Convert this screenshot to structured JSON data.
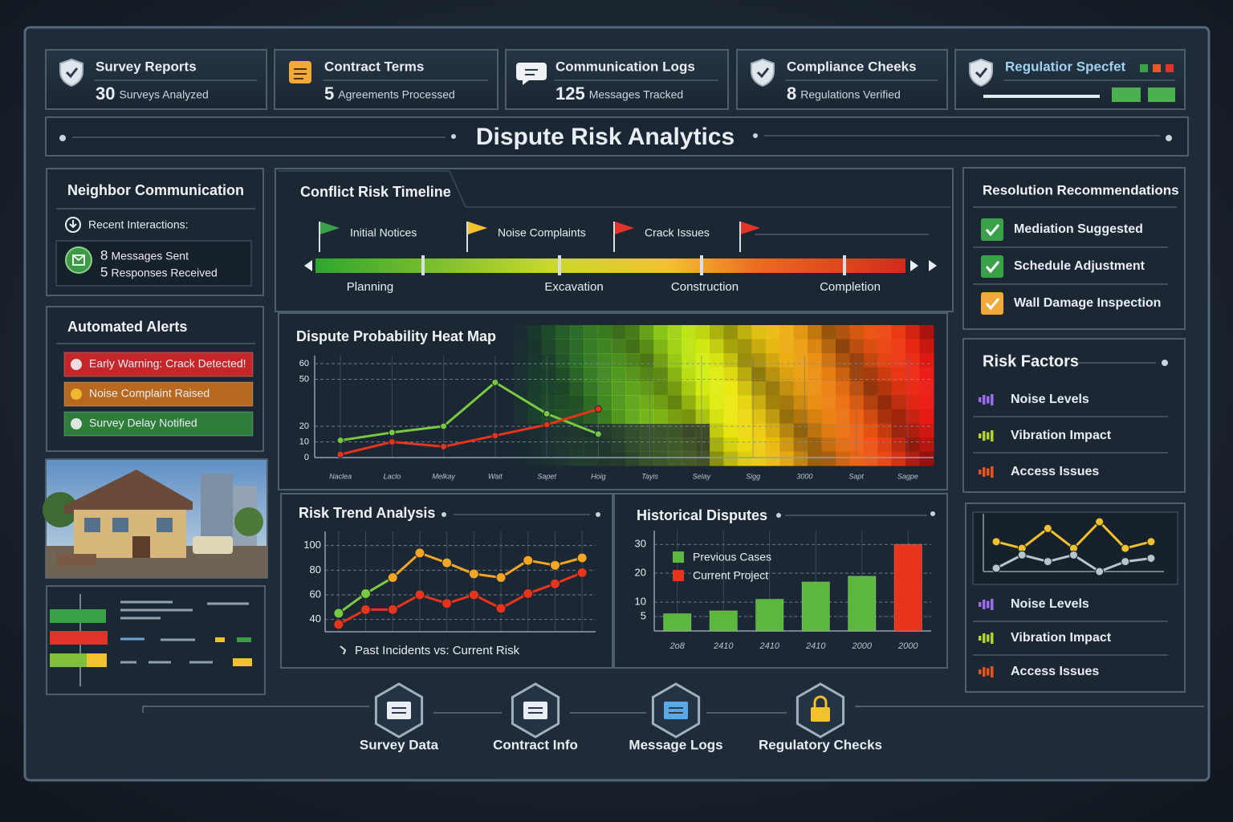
{
  "header_cards": [
    {
      "title": "Survey Reports",
      "value": 30,
      "label": "Surveys Analyzed"
    },
    {
      "title": "Contract Terms",
      "value": 5,
      "label": "Agreements Processed"
    },
    {
      "title": "Communication Logs",
      "value": 125,
      "label": "Messages Tracked"
    },
    {
      "title": "Compliance Cheeks",
      "value": 8,
      "label": "Regulations Verified"
    },
    {
      "title": "Regulatior Specfet"
    }
  ],
  "title": "Dispute Risk Analytics",
  "neighbor_communication": {
    "title": "Neighbor Communication",
    "subtitle": "Recent Interactions:",
    "items": [
      {
        "value": 8,
        "label": "Messages Sent"
      },
      {
        "value": 5,
        "label": "Responses Received"
      }
    ]
  },
  "automated_alerts": {
    "title": "Automated Alerts",
    "items": [
      "Early Warning: Crack Detected!",
      "Noise Complaint Raised",
      "Survey Delay Notified"
    ]
  },
  "timeline": {
    "title": "Conflict Risk Timeline",
    "flags": [
      "Initial Notices",
      "Noise Complaints",
      "Crack Issues"
    ],
    "phases": [
      "Planning",
      "Excavation",
      "Construction",
      "Completion"
    ]
  },
  "chart_data": [
    {
      "type": "line",
      "title": "Dispute Probability Heat Map",
      "categories": [
        "Naclea",
        "Laclo",
        "Melkay",
        "Wait",
        "Sapet",
        "Hoig",
        "Tayis",
        "Selay",
        "Sigg",
        "3000",
        "Sapt",
        "Sagpe"
      ],
      "ylim": [
        0,
        60
      ],
      "yticks": [
        0,
        10,
        20,
        50,
        60
      ],
      "grid": true,
      "series": [
        {
          "color": "#7ac943",
          "values": [
            11,
            16,
            20,
            48,
            28,
            15,
            null,
            null,
            null,
            null,
            null,
            null
          ]
        },
        {
          "color": "#e8341c",
          "values": [
            2,
            10,
            7,
            14,
            21,
            31,
            null,
            null,
            null,
            null,
            null,
            null
          ]
        }
      ]
    },
    {
      "type": "line",
      "title": "Risk Trend Analysis",
      "annotation": "Past Incidents vs: Current Risk",
      "categories": [
        null,
        null,
        null,
        null,
        null,
        null,
        null,
        null,
        null,
        null
      ],
      "ylim": [
        30,
        105
      ],
      "yticks": [
        40,
        60,
        80,
        100
      ],
      "grid": true,
      "series": [
        {
          "color": "#7ac943",
          "values": [
            45,
            61,
            74,
            null,
            null,
            null,
            null,
            null,
            null,
            null
          ]
        },
        {
          "color": "#f5a623",
          "values": [
            null,
            null,
            74,
            94,
            86,
            77,
            74,
            88,
            84,
            90
          ]
        },
        {
          "color": "#e8341c",
          "values": [
            36,
            48,
            48,
            60,
            53,
            60,
            49,
            61,
            69,
            78
          ]
        }
      ]
    },
    {
      "type": "bar",
      "title": "Historical Disputes",
      "categories": [
        "2o8",
        "2410",
        "2410",
        "2410",
        "2000",
        "2000"
      ],
      "ylim": [
        0,
        32
      ],
      "yticks": [
        5,
        10,
        20,
        30
      ],
      "grid": true,
      "series": [
        {
          "name": "Previous Cases",
          "color": "#5cb83c",
          "values": [
            6,
            7,
            11,
            17,
            19,
            null
          ]
        },
        {
          "name": "Current Project",
          "color": "#e8341c",
          "values": [
            null,
            null,
            null,
            null,
            null,
            30
          ]
        }
      ]
    },
    {
      "type": "line",
      "categories": [
        null,
        null,
        null,
        null,
        null,
        null,
        null
      ],
      "series": [
        {
          "color": "#f2c12e",
          "values": [
            6,
            5,
            8,
            5,
            9,
            5,
            6
          ]
        },
        {
          "color": "#b9c4cc",
          "values": [
            2,
            4,
            3,
            4,
            1.5,
            3,
            3.5
          ]
        }
      ]
    }
  ],
  "resolution_recommendations": {
    "title": "Resolution Recommendations",
    "items": [
      "Mediation Suggested",
      "Schedule Adjustment",
      "Wall Damage Inspection"
    ]
  },
  "risk_factors": {
    "title": "Risk Factors",
    "items": [
      "Noise Levels",
      "Vibration Impact",
      "Access Issues"
    ]
  },
  "factor_trends": {
    "items": [
      "Noise Levels",
      "Vibration Impact",
      "Access Issues"
    ]
  },
  "navigation": [
    "Survey Data",
    "Contract Info",
    "Message Logs",
    "Regulatory Checks"
  ]
}
